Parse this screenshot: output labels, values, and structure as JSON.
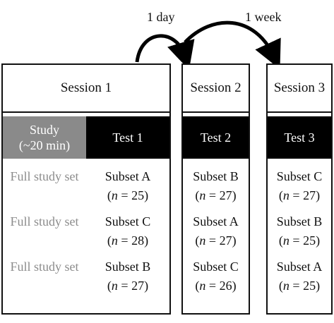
{
  "intervals": {
    "first": "1 day",
    "second": "1 week"
  },
  "sessions": [
    {
      "title": "Session 1",
      "phases": [
        {
          "label": "Study\n(~20 min)",
          "style": "grey"
        },
        {
          "label": "Test 1",
          "style": "black"
        }
      ],
      "rows": [
        {
          "study": "Full study set",
          "subset": "Subset A",
          "n": "25"
        },
        {
          "study": "Full study set",
          "subset": "Subset C",
          "n": "28"
        },
        {
          "study": "Full study set",
          "subset": "Subset B",
          "n": "27"
        }
      ]
    },
    {
      "title": "Session 2",
      "phases": [
        {
          "label": "Test 2",
          "style": "black"
        }
      ],
      "rows": [
        {
          "subset": "Subset B",
          "n": "27"
        },
        {
          "subset": "Subset A",
          "n": "27"
        },
        {
          "subset": "Subset C",
          "n": "26"
        }
      ]
    },
    {
      "title": "Session 3",
      "phases": [
        {
          "label": "Test 3",
          "style": "black"
        }
      ],
      "rows": [
        {
          "subset": "Subset C",
          "n": "27"
        },
        {
          "subset": "Subset B",
          "n": "25"
        },
        {
          "subset": "Subset A",
          "n": "25"
        }
      ]
    }
  ],
  "n_prefix": "n",
  "colors": {
    "study": "#8a8a8a",
    "test": "#000000",
    "study_text": "#8c8c8c"
  }
}
